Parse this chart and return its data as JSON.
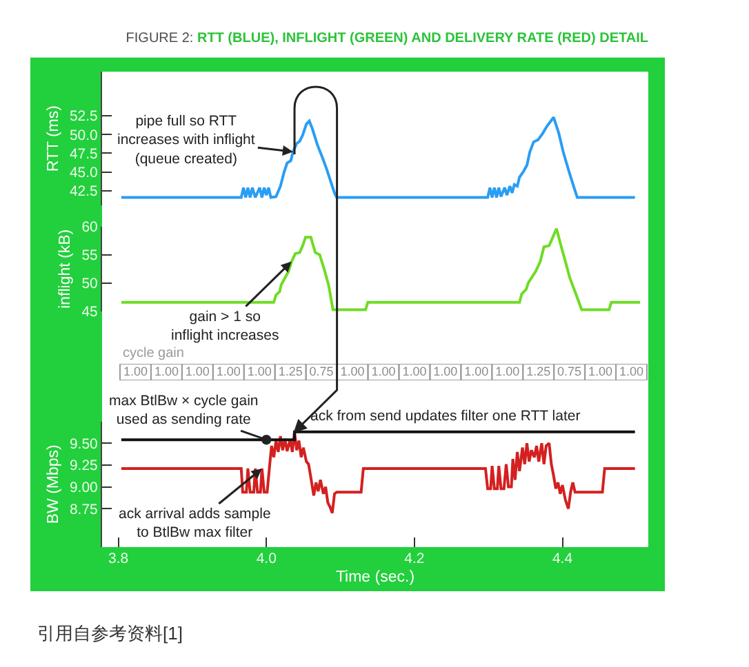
{
  "chart_data": [
    {
      "type": "line",
      "title": "FIGURE 2: RTT (BLUE), INFLIGHT (GREEN) AND DELIVERY RATE (RED) DETAIL",
      "ylabel": "RTT (ms)",
      "xlim": [
        3.778,
        4.516
      ],
      "ylim": [
        40.5,
        58.4
      ],
      "yticks": [
        52.5,
        {
          "value": 50,
          "label": "50.0"
        },
        47.5,
        {
          "value": 45,
          "label": "45.0"
        },
        42.5
      ],
      "tick_labels": "y",
      "x": [
        3.804,
        3.966,
        3.969,
        3.972,
        3.975,
        3.978,
        3.981,
        3.985,
        3.991,
        3.994,
        3.997,
        4.0,
        4.003,
        4.006,
        4.013,
        4.019,
        4.024,
        4.028,
        4.033,
        4.036,
        4.041,
        4.045,
        4.049,
        4.054,
        4.058,
        4.062,
        4.069,
        4.075,
        4.081,
        4.087,
        4.092,
        4.095,
        4.299,
        4.302,
        4.305,
        4.308,
        4.311,
        4.314,
        4.317,
        4.322,
        4.325,
        4.329,
        4.332,
        4.335,
        4.339,
        4.342,
        4.347,
        4.352,
        4.356,
        4.361,
        4.367,
        4.373,
        4.379,
        4.388,
        4.395,
        4.401,
        4.409,
        4.416,
        4.42,
        4.498
      ],
      "series": [
        {
          "color": "#2a9df4",
          "values": [
            41.6,
            41.6,
            42.9,
            41.6,
            42.9,
            41.6,
            42.9,
            41.6,
            42.9,
            41.6,
            42.9,
            41.9,
            42.9,
            41.6,
            41.7,
            43.1,
            45.0,
            46.2,
            46.5,
            47.7,
            48.8,
            49.1,
            49.9,
            51.4,
            51.8,
            50.8,
            48.6,
            47.1,
            45.5,
            43.7,
            42.2,
            41.6,
            41.6,
            42.9,
            41.6,
            42.9,
            41.6,
            42.9,
            41.7,
            42.9,
            41.9,
            43.1,
            42.2,
            43.3,
            43.1,
            44.3,
            45.0,
            45.9,
            47.7,
            49.0,
            49.3,
            50.1,
            51.1,
            52.3,
            50.2,
            47.7,
            45.0,
            42.8,
            41.6,
            41.6
          ]
        }
      ],
      "annotations": [
        {
          "text": "pipe full so RTT\nincreases with inflight\n(queue created)",
          "x": 4.036,
          "y": 47.7
        }
      ]
    },
    {
      "type": "line",
      "ylabel": "inflight (kB)",
      "xlim": [
        3.778,
        4.516
      ],
      "ylim": [
        45,
        60
      ],
      "yticks": [
        45,
        50,
        55,
        60
      ],
      "tick_labels": "y",
      "x": [
        3.804,
        4.01,
        4.013,
        4.018,
        4.02,
        4.025,
        4.03,
        4.034,
        4.039,
        4.045,
        4.049,
        4.053,
        4.06,
        4.066,
        4.072,
        4.078,
        4.084,
        4.09,
        4.134,
        4.137,
        4.342,
        4.345,
        4.351,
        4.354,
        4.364,
        4.37,
        4.375,
        4.382,
        4.392,
        4.398,
        4.404,
        4.41,
        4.417,
        4.426,
        4.463,
        4.466,
        4.505
      ],
      "series": [
        {
          "color": "#6fdc24",
          "values": [
            46.6,
            46.6,
            47.9,
            48.5,
            49.7,
            50.9,
            52.1,
            53.8,
            55.2,
            55.4,
            56.6,
            58.1,
            58.1,
            55.4,
            55.0,
            52.5,
            49.7,
            45.3,
            45.3,
            46.6,
            46.6,
            48.1,
            48.9,
            50.1,
            52.1,
            53.8,
            56.4,
            56.6,
            59.6,
            56.6,
            53.8,
            50.9,
            48.5,
            45.3,
            45.3,
            46.6,
            46.6
          ]
        }
      ],
      "annotations": [
        {
          "text": "gain > 1 so\ninflight increases",
          "x": 4.034,
          "y": 53.8
        }
      ]
    },
    {
      "type": "other",
      "title": "cycle gain",
      "values": [
        1.0,
        1.0,
        1.0,
        1.0,
        1.0,
        1.25,
        0.75,
        1.0,
        1.0,
        1.0,
        1.0,
        1.0,
        1.0,
        1.25,
        0.75,
        1.0,
        1.0
      ],
      "value_labels": [
        "1.00",
        "1.00",
        "1.00",
        "1.00",
        "1.00",
        "1.25",
        "0.75",
        "1.00",
        "1.00",
        "1.00",
        "1.00",
        "1.00",
        "1.00",
        "1.25",
        "0.75",
        "1.00",
        "1.00"
      ]
    },
    {
      "type": "line",
      "xlabel": "Time (sec.)",
      "ylabel": "BW (Mbps)",
      "xlim": [
        3.778,
        4.516
      ],
      "xticks": [
        3.8,
        {
          "value": 4,
          "label": "4.0"
        },
        4.2,
        4.4
      ],
      "ylim": [
        8.31,
        9.75
      ],
      "yticks": [
        {
          "value": 9.5,
          "label": "9.50"
        },
        9.25,
        {
          "value": 9,
          "label": "9.00"
        },
        8.75
      ],
      "series": [
        {
          "color": "#d42020",
          "x": [
            3.804,
            3.966,
            3.968,
            3.973,
            3.975,
            3.978,
            3.983,
            3.985,
            3.988,
            3.992,
            3.994,
            3.997,
            4.001,
            4.004,
            4.007,
            4.01,
            4.013,
            4.016,
            4.019,
            4.022,
            4.025,
            4.028,
            4.032,
            4.035,
            4.038,
            4.041,
            4.044,
            4.047,
            4.05,
            4.054,
            4.057,
            4.06,
            4.064,
            4.067,
            4.07,
            4.073,
            4.077,
            4.08,
            4.083,
            4.086,
            4.089,
            4.092,
            4.095,
            4.128,
            4.131,
            4.296,
            4.299,
            4.303,
            4.305,
            4.308,
            4.312,
            4.314,
            4.317,
            4.321,
            4.324,
            4.327,
            4.331,
            4.333,
            4.336,
            4.339,
            4.342,
            4.346,
            4.349,
            4.352,
            4.355,
            4.358,
            4.362,
            4.365,
            4.368,
            4.372,
            4.375,
            4.378,
            4.382,
            4.385,
            4.388,
            4.391,
            4.394,
            4.397,
            4.4,
            4.404,
            4.408,
            4.411,
            4.414,
            4.417,
            4.454,
            4.457,
            4.498
          ],
          "values": [
            9.21,
            9.21,
            8.94,
            8.94,
            9.21,
            8.94,
            8.94,
            9.21,
            8.94,
            8.94,
            9.21,
            8.94,
            8.94,
            9.21,
            9.47,
            9.34,
            9.53,
            9.4,
            9.58,
            9.42,
            9.55,
            9.41,
            9.54,
            9.4,
            9.63,
            9.42,
            9.53,
            9.34,
            9.45,
            9.29,
            9.26,
            9.11,
            8.9,
            9.05,
            8.95,
            9.08,
            8.92,
            9.0,
            8.82,
            8.77,
            8.7,
            8.92,
            8.94,
            8.94,
            9.21,
            9.21,
            8.98,
            8.98,
            9.24,
            8.98,
            8.98,
            9.24,
            8.98,
            8.98,
            9.26,
            9.0,
            9.0,
            9.32,
            9.08,
            9.4,
            9.18,
            9.45,
            9.26,
            9.5,
            9.29,
            9.42,
            9.34,
            9.47,
            9.29,
            9.5,
            9.26,
            9.47,
            9.5,
            9.26,
            9.13,
            8.98,
            9.05,
            8.92,
            9.02,
            8.85,
            8.75,
            8.94,
            9.05,
            8.94,
            8.94,
            9.21,
            9.21
          ]
        },
        {
          "type": "step",
          "color": "#111111",
          "x": [
            3.804,
            4.038,
            4.498
          ],
          "values": [
            9.54,
            9.63,
            9.63
          ]
        }
      ],
      "annotations": [
        {
          "text": "max BtlBw × cycle gain\nused as sending rate",
          "x": 4.0,
          "y": 9.54
        },
        {
          "text": "ack from send updates filter one RTT later",
          "x": 4.038,
          "y": 9.63
        },
        {
          "text": "ack arrival adds sample\nto BtlBw max filter",
          "x": 3.994,
          "y": 9.21
        },
        "引用自参考资料[1]"
      ]
    }
  ]
}
